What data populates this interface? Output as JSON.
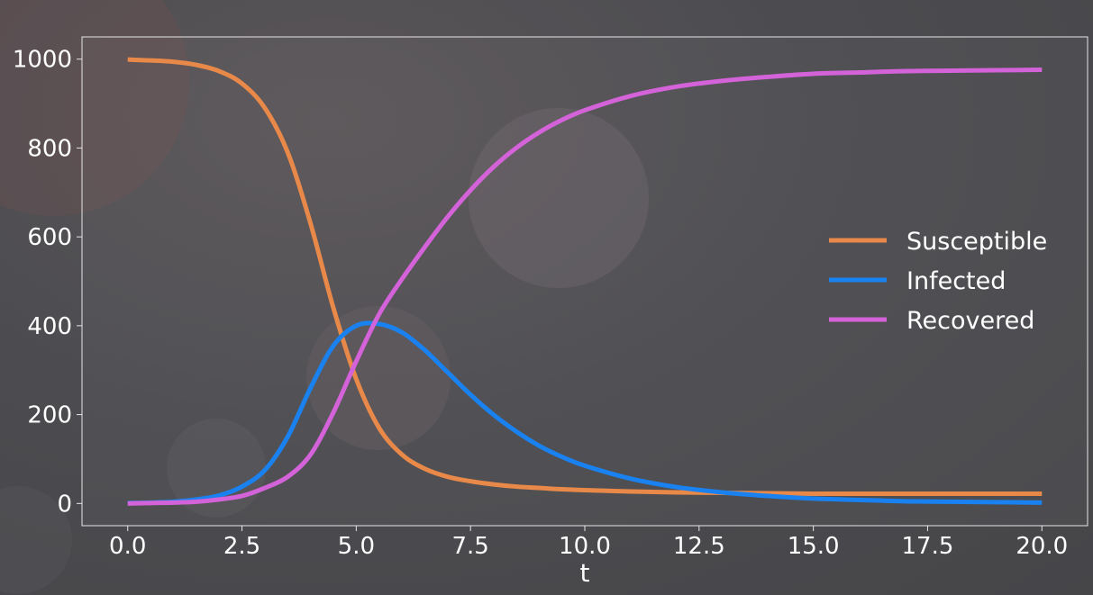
{
  "chart_data": {
    "type": "line",
    "title": "",
    "xlabel": "t",
    "ylabel": "",
    "xlim": [
      -1,
      21
    ],
    "ylim": [
      -50,
      1050
    ],
    "x_ticks": [
      0.0,
      2.5,
      5.0,
      7.5,
      10.0,
      12.5,
      15.0,
      17.5,
      20.0
    ],
    "x_tick_labels": [
      "0.0",
      "2.5",
      "5.0",
      "7.5",
      "10.0",
      "12.5",
      "15.0",
      "17.5",
      "20.0"
    ],
    "y_ticks": [
      0,
      200,
      400,
      600,
      800,
      1000
    ],
    "y_tick_labels": [
      "0",
      "200",
      "400",
      "600",
      "800",
      "1000"
    ],
    "grid": false,
    "legend_position": "center-right",
    "x": [
      0,
      0.5,
      1,
      1.5,
      2,
      2.5,
      3,
      3.5,
      4,
      4.5,
      5,
      5.5,
      6,
      6.5,
      7,
      7.5,
      8,
      8.5,
      9,
      9.5,
      10,
      11,
      12,
      13,
      14,
      15,
      16,
      17,
      18,
      19,
      20
    ],
    "series": [
      {
        "name": "Susceptible",
        "color": "#e8894a",
        "values": [
          999,
          997,
          994,
          987,
          973,
          945,
          890,
          790,
          630,
          440,
          280,
          170,
          110,
          78,
          60,
          50,
          43,
          38,
          35,
          32,
          30,
          27,
          25,
          24,
          23,
          22,
          22,
          22,
          22,
          22,
          22
        ]
      },
      {
        "name": "Infected",
        "color": "#1a82f0",
        "values": [
          1,
          2,
          4,
          9,
          18,
          38,
          75,
          150,
          260,
          355,
          400,
          404,
          385,
          345,
          295,
          245,
          200,
          162,
          130,
          105,
          85,
          56,
          37,
          25,
          17,
          11,
          8,
          5,
          4,
          3,
          2
        ]
      },
      {
        "name": "Recovered",
        "color": "#d462d9",
        "values": [
          0,
          1,
          2,
          4,
          9,
          17,
          35,
          60,
          110,
          205,
          320,
          426,
          505,
          577,
          645,
          705,
          757,
          800,
          835,
          863,
          885,
          917,
          938,
          951,
          960,
          967,
          970,
          973,
          974,
          975,
          976
        ]
      }
    ]
  }
}
